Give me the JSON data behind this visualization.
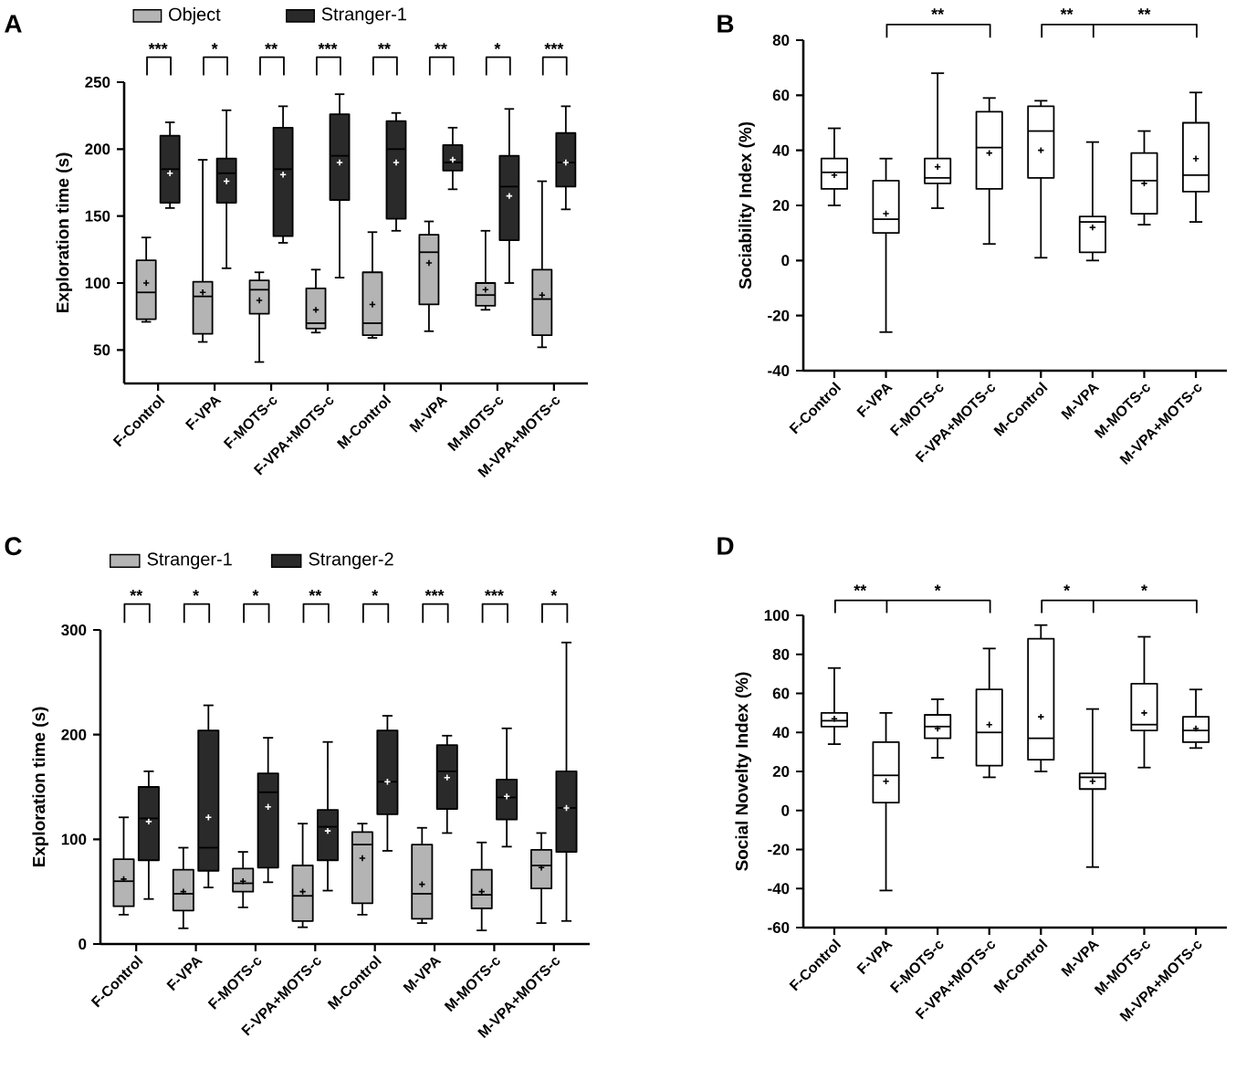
{
  "chart_data": [
    {
      "type": "box",
      "title": "A",
      "ylabel": "Exploration time (s)",
      "legend": "top left",
      "categories": [
        "F-Control",
        "F-VPA",
        "F-MOTS-c",
        "F-VPA+MOTS-c",
        "M-Control",
        "M-VPA",
        "M-MOTS-c",
        "M-VPA+MOTS-c"
      ],
      "ylim": [
        25,
        250
      ],
      "yticks": [
        50,
        100,
        150,
        200,
        250
      ],
      "series": [
        {
          "name": "Object",
          "color": "#b4b4b4",
          "boxes": [
            {
              "low": 71,
              "q1": 73,
              "median": 93,
              "q3": 117,
              "high": 134,
              "mean": 100
            },
            {
              "low": 56,
              "q1": 62,
              "median": 90,
              "q3": 101,
              "high": 192,
              "mean": 93
            },
            {
              "low": 41,
              "q1": 77,
              "median": 95,
              "q3": 102,
              "high": 108,
              "mean": 87
            },
            {
              "low": 63,
              "q1": 66,
              "median": 70,
              "q3": 96,
              "high": 110,
              "mean": 80
            },
            {
              "low": 59,
              "q1": 61,
              "median": 70,
              "q3": 108,
              "high": 138,
              "mean": 84
            },
            {
              "low": 64,
              "q1": 84,
              "median": 123,
              "q3": 136,
              "high": 146,
              "mean": 115
            },
            {
              "low": 80,
              "q1": 83,
              "median": 91,
              "q3": 100,
              "high": 139,
              "mean": 95
            },
            {
              "low": 52,
              "q1": 61,
              "median": 88,
              "q3": 110,
              "high": 176,
              "mean": 91
            }
          ]
        },
        {
          "name": "Stranger-1",
          "color": "#2a2a2a",
          "boxes": [
            {
              "low": 156,
              "q1": 160,
              "median": 185,
              "q3": 210,
              "high": 220,
              "mean": 182
            },
            {
              "low": 111,
              "q1": 160,
              "median": 182,
              "q3": 193,
              "high": 229,
              "mean": 176
            },
            {
              "low": 130,
              "q1": 135,
              "median": 185,
              "q3": 216,
              "high": 232,
              "mean": 181
            },
            {
              "low": 104,
              "q1": 162,
              "median": 195,
              "q3": 226,
              "high": 241,
              "mean": 190
            },
            {
              "low": 139,
              "q1": 148,
              "median": 200,
              "q3": 221,
              "high": 227,
              "mean": 190
            },
            {
              "low": 170,
              "q1": 184,
              "median": 190,
              "q3": 203,
              "high": 216,
              "mean": 192
            },
            {
              "low": 100,
              "q1": 132,
              "median": 172,
              "q3": 195,
              "high": 230,
              "mean": 165
            },
            {
              "low": 155,
              "q1": 172,
              "median": 190,
              "q3": 212,
              "high": 232,
              "mean": 190
            }
          ]
        }
      ],
      "annotations": [
        "***",
        "*",
        "**",
        "***",
        "**",
        "**",
        "*",
        "***"
      ]
    },
    {
      "type": "box",
      "title": "B",
      "ylabel": "Sociability Index (%)",
      "color": "#ffffff",
      "categories": [
        "F-Control",
        "F-VPA",
        "F-MOTS-c",
        "F-VPA+MOTS-c",
        "M-Control",
        "M-VPA",
        "M-MOTS-c",
        "M-VPA+MOTS-c"
      ],
      "ylim": [
        -40,
        80
      ],
      "yticks": [
        -40,
        -20,
        0,
        20,
        40,
        60,
        80
      ],
      "boxes": [
        {
          "low": 20,
          "q1": 26,
          "median": 32,
          "q3": 37,
          "high": 48,
          "mean": 31
        },
        {
          "low": -26,
          "q1": 10,
          "median": 15,
          "q3": 29,
          "high": 37,
          "mean": 17
        },
        {
          "low": 19,
          "q1": 28,
          "median": 30,
          "q3": 37,
          "high": 68,
          "mean": 34
        },
        {
          "low": 6,
          "q1": 26,
          "median": 41,
          "q3": 54,
          "high": 59,
          "mean": 39
        },
        {
          "low": 1,
          "q1": 30,
          "median": 47,
          "q3": 56,
          "high": 58,
          "mean": 40
        },
        {
          "low": 0,
          "q1": 3,
          "median": 14,
          "q3": 16,
          "high": 43,
          "mean": 12
        },
        {
          "low": 13,
          "q1": 17,
          "median": 29,
          "q3": 39,
          "high": 47,
          "mean": 28
        },
        {
          "low": 14,
          "q1": 25,
          "median": 31,
          "q3": 50,
          "high": 61,
          "mean": 37
        }
      ],
      "annotations": [
        "**",
        "**",
        "**"
      ]
    },
    {
      "type": "box",
      "title": "C",
      "ylabel": "Exploration time (s)",
      "legend": "top left",
      "categories": [
        "F-Control",
        "F-VPA",
        "F-MOTS-c",
        "F-VPA+MOTS-c",
        "M-Control",
        "M-VPA",
        "M-MOTS-c",
        "M-VPA+MOTS-c"
      ],
      "ylim": [
        0,
        300
      ],
      "yticks": [
        0,
        100,
        200,
        300
      ],
      "series": [
        {
          "name": "Stranger-1",
          "color": "#b4b4b4",
          "boxes": [
            {
              "low": 28,
              "q1": 36,
              "median": 60,
              "q3": 81,
              "high": 121,
              "mean": 62
            },
            {
              "low": 15,
              "q1": 32,
              "median": 48,
              "q3": 71,
              "high": 92,
              "mean": 50
            },
            {
              "low": 35,
              "q1": 50,
              "median": 58,
              "q3": 72,
              "high": 88,
              "mean": 60
            },
            {
              "low": 16,
              "q1": 22,
              "median": 46,
              "q3": 75,
              "high": 115,
              "mean": 50
            },
            {
              "low": 28,
              "q1": 39,
              "median": 95,
              "q3": 107,
              "high": 115,
              "mean": 82
            },
            {
              "low": 20,
              "q1": 24,
              "median": 48,
              "q3": 95,
              "high": 111,
              "mean": 57
            },
            {
              "low": 13,
              "q1": 34,
              "median": 47,
              "q3": 71,
              "high": 97,
              "mean": 50
            },
            {
              "low": 20,
              "q1": 53,
              "median": 75,
              "q3": 90,
              "high": 106,
              "mean": 73
            }
          ]
        },
        {
          "name": "Stranger-2",
          "color": "#2a2a2a",
          "boxes": [
            {
              "low": 43,
              "q1": 80,
              "median": 120,
              "q3": 150,
              "high": 165,
              "mean": 117
            },
            {
              "low": 54,
              "q1": 70,
              "median": 92,
              "q3": 204,
              "high": 228,
              "mean": 121
            },
            {
              "low": 59,
              "q1": 73,
              "median": 145,
              "q3": 163,
              "high": 197,
              "mean": 131
            },
            {
              "low": 51,
              "q1": 80,
              "median": 112,
              "q3": 128,
              "high": 193,
              "mean": 108
            },
            {
              "low": 89,
              "q1": 124,
              "median": 155,
              "q3": 204,
              "high": 218,
              "mean": 155
            },
            {
              "low": 106,
              "q1": 129,
              "median": 165,
              "q3": 190,
              "high": 199,
              "mean": 159
            },
            {
              "low": 93,
              "q1": 119,
              "median": 140,
              "q3": 157,
              "high": 206,
              "mean": 141
            },
            {
              "low": 22,
              "q1": 88,
              "median": 130,
              "q3": 165,
              "high": 288,
              "mean": 130
            }
          ]
        }
      ],
      "annotations": [
        "**",
        "*",
        "*",
        "**",
        "*",
        "***",
        "***",
        "*"
      ]
    },
    {
      "type": "box",
      "title": "D",
      "ylabel": "Social Novelty Index (%)",
      "color": "#ffffff",
      "categories": [
        "F-Control",
        "F-VPA",
        "F-MOTS-c",
        "F-VPA+MOTS-c",
        "M-Control",
        "M-VPA",
        "M-MOTS-c",
        "M-VPA+MOTS-c"
      ],
      "ylim": [
        -60,
        100
      ],
      "yticks": [
        -60,
        -40,
        -20,
        0,
        20,
        40,
        60,
        80,
        100
      ],
      "boxes": [
        {
          "low": 34,
          "q1": 43,
          "median": 46,
          "q3": 50,
          "high": 73,
          "mean": 47
        },
        {
          "low": -41,
          "q1": 4,
          "median": 18,
          "q3": 35,
          "high": 50,
          "mean": 15
        },
        {
          "low": 27,
          "q1": 37,
          "median": 43,
          "q3": 49,
          "high": 57,
          "mean": 42
        },
        {
          "low": 17,
          "q1": 23,
          "median": 40,
          "q3": 62,
          "high": 83,
          "mean": 44
        },
        {
          "low": 20,
          "q1": 26,
          "median": 37,
          "q3": 88,
          "high": 95,
          "mean": 48
        },
        {
          "low": -29,
          "q1": 11,
          "median": 17,
          "q3": 19,
          "high": 52,
          "mean": 15
        },
        {
          "low": 22,
          "q1": 41,
          "median": 44,
          "q3": 65,
          "high": 89,
          "mean": 50
        },
        {
          "low": 32,
          "q1": 35,
          "median": 41,
          "q3": 48,
          "high": 62,
          "mean": 42
        }
      ],
      "annotations": [
        "**",
        "*",
        "*",
        "*"
      ]
    }
  ]
}
